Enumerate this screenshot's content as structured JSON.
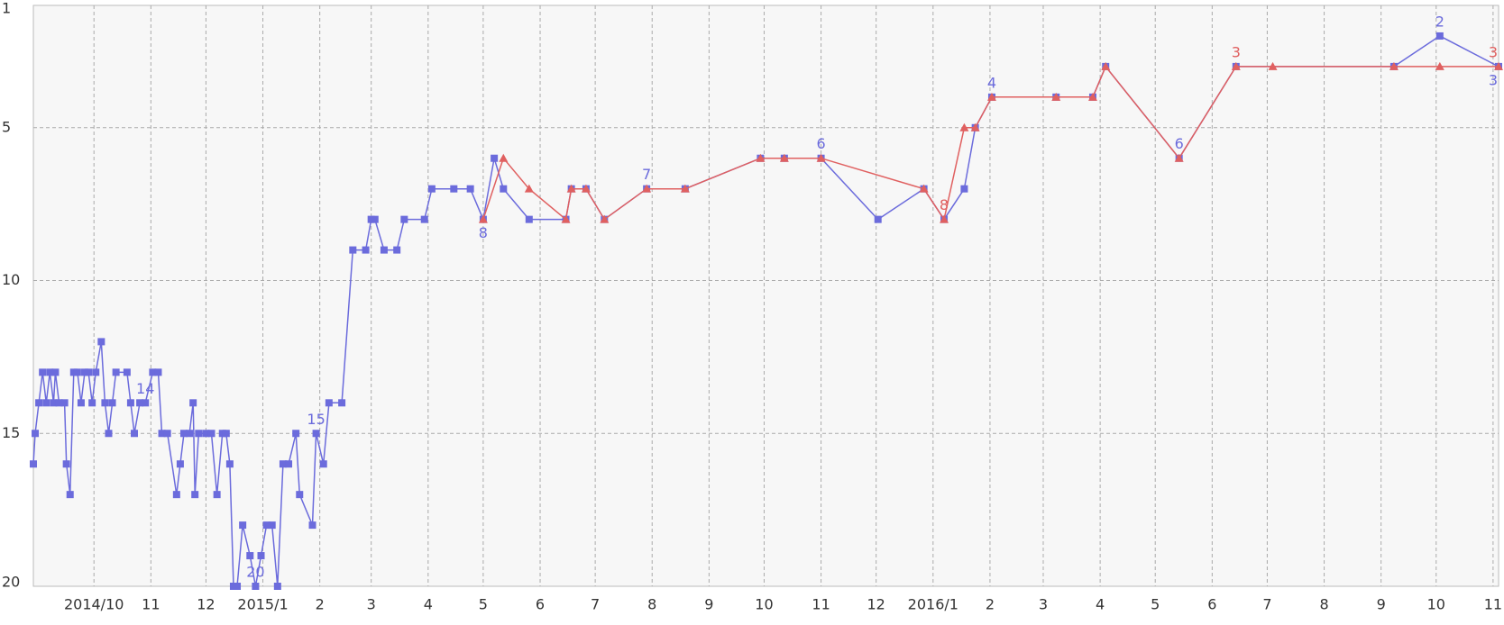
{
  "chart_data": {
    "type": "line",
    "y_inverted": true,
    "grid": true,
    "xlim": [
      "2014-08-29",
      "2016-11-04"
    ],
    "ylim": [
      1,
      20
    ],
    "yticks": [
      1,
      5,
      10,
      15,
      20
    ],
    "xticks": [
      {
        "value": "2014-10-01",
        "label": "2014/10"
      },
      {
        "value": "2014-11-01",
        "label": "11"
      },
      {
        "value": "2014-12-01",
        "label": "12"
      },
      {
        "value": "2015-01-01",
        "label": "2015/1"
      },
      {
        "value": "2015-02-01",
        "label": "2"
      },
      {
        "value": "2015-03-01",
        "label": "3"
      },
      {
        "value": "2015-04-01",
        "label": "4"
      },
      {
        "value": "2015-05-01",
        "label": "5"
      },
      {
        "value": "2015-06-01",
        "label": "6"
      },
      {
        "value": "2015-07-01",
        "label": "7"
      },
      {
        "value": "2015-08-01",
        "label": "8"
      },
      {
        "value": "2015-09-01",
        "label": "9"
      },
      {
        "value": "2015-10-01",
        "label": "10"
      },
      {
        "value": "2015-11-01",
        "label": "11"
      },
      {
        "value": "2015-12-01",
        "label": "12"
      },
      {
        "value": "2016-01-01",
        "label": "2016/1"
      },
      {
        "value": "2016-02-01",
        "label": "2"
      },
      {
        "value": "2016-03-01",
        "label": "3"
      },
      {
        "value": "2016-04-01",
        "label": "4"
      },
      {
        "value": "2016-05-01",
        "label": "5"
      },
      {
        "value": "2016-06-01",
        "label": "6"
      },
      {
        "value": "2016-07-01",
        "label": "7"
      },
      {
        "value": "2016-08-01",
        "label": "8"
      },
      {
        "value": "2016-09-01",
        "label": "9"
      },
      {
        "value": "2016-10-01",
        "label": "10"
      },
      {
        "value": "2016-11-01",
        "label": "11"
      }
    ],
    "series": [
      {
        "color": "#6b6bdc",
        "marker": "square",
        "x": [
          "2014-08-29",
          "2014-08-30",
          "2014-09-01",
          "2014-09-03",
          "2014-09-05",
          "2014-09-07",
          "2014-09-09",
          "2014-09-10",
          "2014-09-12",
          "2014-09-15",
          "2014-09-16",
          "2014-09-18",
          "2014-09-20",
          "2014-09-22",
          "2014-09-24",
          "2014-09-26",
          "2014-09-28",
          "2014-09-30",
          "2014-10-02",
          "2014-10-05",
          "2014-10-07",
          "2014-10-09",
          "2014-10-11",
          "2014-10-13",
          "2014-10-19",
          "2014-10-21",
          "2014-10-23",
          "2014-10-26",
          "2014-10-29",
          "2014-11-02",
          "2014-11-05",
          "2014-11-07",
          "2014-11-10",
          "2014-11-15",
          "2014-11-17",
          "2014-11-19",
          "2014-11-22",
          "2014-11-24",
          "2014-11-25",
          "2014-11-27",
          "2014-12-01",
          "2014-12-04",
          "2014-12-07",
          "2014-12-10",
          "2014-12-12",
          "2014-12-14",
          "2014-12-16",
          "2014-12-18",
          "2014-12-21",
          "2014-12-25",
          "2014-12-28",
          "2014-12-31",
          "2015-01-03",
          "2015-01-06",
          "2015-01-09",
          "2015-01-12",
          "2015-01-15",
          "2015-01-19",
          "2015-01-21",
          "2015-01-28",
          "2015-01-30",
          "2015-02-03",
          "2015-02-06",
          "2015-02-13",
          "2015-02-19",
          "2015-02-26",
          "2015-03-01",
          "2015-03-03",
          "2015-03-08",
          "2015-03-15",
          "2015-03-19",
          "2015-03-30",
          "2015-04-03",
          "2015-04-15",
          "2015-04-24",
          "2015-05-01",
          "2015-05-07",
          "2015-05-12",
          "2015-05-26",
          "2015-06-15",
          "2015-06-18",
          "2015-06-26",
          "2015-07-06",
          "2015-07-29",
          "2015-08-19",
          "2015-09-29",
          "2015-10-12",
          "2015-11-01",
          "2015-12-02",
          "2015-12-27",
          "2016-01-07",
          "2016-01-18",
          "2016-01-24",
          "2016-02-02",
          "2016-03-08",
          "2016-03-28",
          "2016-04-04",
          "2016-05-14",
          "2016-06-14",
          "2016-09-08",
          "2016-10-03",
          "2016-11-04"
        ],
        "values": [
          16,
          15,
          14,
          13,
          14,
          13,
          14,
          13,
          14,
          14,
          16,
          17,
          13,
          13,
          14,
          13,
          13,
          14,
          13,
          12,
          14,
          15,
          14,
          13,
          13,
          14,
          15,
          14,
          14,
          13,
          13,
          15,
          15,
          17,
          16,
          15,
          15,
          14,
          17,
          15,
          15,
          15,
          17,
          15,
          15,
          16,
          20,
          20,
          18,
          19,
          20,
          19,
          18,
          18,
          20,
          16,
          16,
          15,
          17,
          18,
          15,
          16,
          14,
          14,
          9,
          9,
          8,
          8,
          9,
          9,
          8,
          8,
          7,
          7,
          7,
          8,
          6,
          7,
          8,
          8,
          7,
          7,
          8,
          7,
          7,
          6,
          6,
          6,
          8,
          7,
          8,
          7,
          5,
          4,
          4,
          4,
          3,
          6,
          3,
          3,
          2,
          3
        ],
        "value_labels": [
          null,
          null,
          null,
          null,
          null,
          null,
          null,
          null,
          null,
          null,
          null,
          null,
          null,
          null,
          null,
          null,
          null,
          null,
          null,
          null,
          null,
          null,
          null,
          null,
          null,
          null,
          null,
          null,
          "14",
          null,
          null,
          null,
          null,
          null,
          null,
          null,
          null,
          null,
          null,
          null,
          null,
          null,
          null,
          null,
          null,
          null,
          null,
          null,
          null,
          null,
          "20",
          null,
          null,
          null,
          null,
          null,
          null,
          null,
          null,
          null,
          "15",
          null,
          null,
          null,
          null,
          null,
          null,
          null,
          null,
          null,
          null,
          null,
          null,
          null,
          null,
          "8",
          null,
          null,
          null,
          null,
          null,
          null,
          null,
          "7",
          null,
          null,
          null,
          "6",
          null,
          null,
          null,
          null,
          null,
          "4",
          null,
          null,
          null,
          "6",
          null,
          null,
          "2",
          "3"
        ]
      },
      {
        "color": "#e06060",
        "marker": "triangle",
        "x": [
          "2015-05-01",
          "2015-05-12",
          "2015-05-26",
          "2015-06-15",
          "2015-06-18",
          "2015-06-26",
          "2015-07-06",
          "2015-07-29",
          "2015-08-19",
          "2015-09-29",
          "2015-10-12",
          "2015-11-01",
          "2015-12-27",
          "2016-01-07",
          "2016-01-18",
          "2016-01-24",
          "2016-02-02",
          "2016-03-08",
          "2016-03-28",
          "2016-04-04",
          "2016-05-14",
          "2016-06-14",
          "2016-07-04",
          "2016-09-08",
          "2016-10-03",
          "2016-11-04"
        ],
        "values": [
          8,
          6,
          7,
          8,
          7,
          7,
          8,
          7,
          7,
          6,
          6,
          6,
          7,
          8,
          5,
          5,
          4,
          4,
          4,
          3,
          6,
          3,
          3,
          3,
          3,
          3
        ],
        "value_labels": [
          null,
          null,
          null,
          null,
          null,
          null,
          null,
          null,
          null,
          null,
          null,
          null,
          null,
          "8",
          null,
          null,
          null,
          null,
          null,
          null,
          null,
          "3",
          null,
          null,
          null,
          "3"
        ]
      }
    ]
  }
}
